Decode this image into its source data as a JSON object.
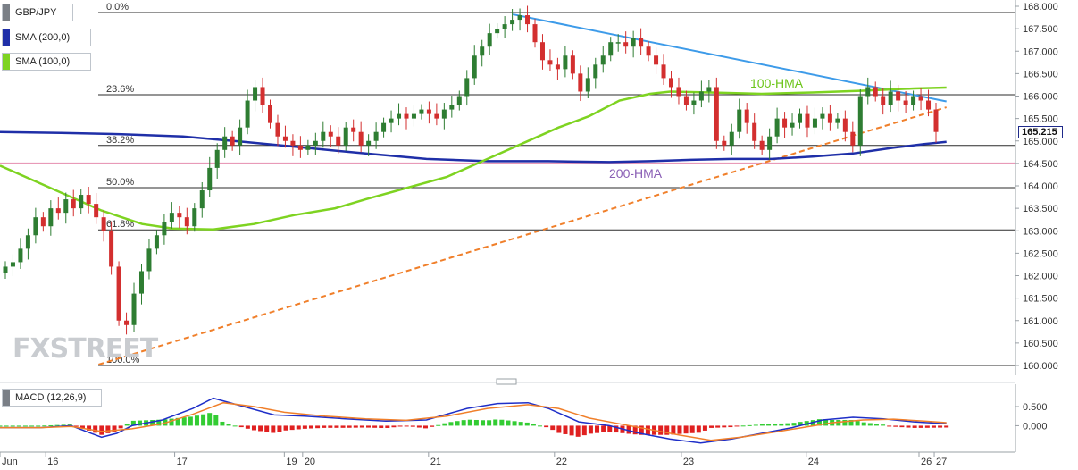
{
  "legend": {
    "symbol": "GBP/JPY",
    "sma200": "SMA (200,0)",
    "sma100": "SMA (100,0)",
    "macd": "MACD (12,26,9)"
  },
  "colors": {
    "up_candle": "#2e7d32",
    "down_candle": "#d32f2f",
    "hma100": "#7ed321",
    "hma200": "#1f2fa8",
    "resistance_line": "#3d9be9",
    "support_line": "#f07f2a",
    "horizontal_line": "#e89ab8",
    "macd_line": "#1f2fc8",
    "signal_line": "#f07f2a",
    "hist_up": "#33cc33",
    "hist_down": "#e02020"
  },
  "watermark": "FXSTREET",
  "current_price": "165.215",
  "chart_data": {
    "type": "candlestick",
    "title": "GBP/JPY",
    "x_tick_labels": [
      "Jun",
      "16",
      "17",
      "19",
      "20",
      "21",
      "22",
      "23",
      "24",
      "26",
      "27"
    ],
    "y_ticks": [
      "168.000",
      "167.500",
      "167.000",
      "166.500",
      "166.000",
      "165.500",
      "165.000",
      "164.500",
      "164.000",
      "163.500",
      "163.000",
      "162.500",
      "162.000",
      "161.500",
      "161.000",
      "160.500",
      "160.000"
    ],
    "ylim": [
      160.0,
      168.0
    ],
    "fibonacci": [
      {
        "label": "0.0%",
        "price": 167.86
      },
      {
        "label": "23.6%",
        "price": 166.03
      },
      {
        "label": "38.2%",
        "price": 164.9
      },
      {
        "label": "50.0%",
        "price": 163.96
      },
      {
        "label": "61.8%",
        "price": 163.02
      },
      {
        "label": "100.0%",
        "price": 160.0
      }
    ],
    "horizontal_support": 164.5,
    "annotations": {
      "hma100_label": "100-HMA",
      "hma200_label": "200-HMA"
    },
    "trendlines": {
      "resistance": {
        "from": [
          0.505,
          167.82
        ],
        "to": [
          0.932,
          165.88
        ]
      },
      "support": {
        "from": [
          0.097,
          160.02
        ],
        "to": [
          0.932,
          165.75
        ]
      }
    },
    "candles_close": [
      162.2,
      162.3,
      162.6,
      162.9,
      163.3,
      163.1,
      163.5,
      163.4,
      163.7,
      163.5,
      163.8,
      163.6,
      163.3,
      163.0,
      162.2,
      161.0,
      160.9,
      161.6,
      162.1,
      162.6,
      162.9,
      163.2,
      163.4,
      163.3,
      163.1,
      163.5,
      163.9,
      164.4,
      164.8,
      165.1,
      164.9,
      165.3,
      165.9,
      166.2,
      165.8,
      165.4,
      165.1,
      165.0,
      164.9,
      164.8,
      164.9,
      165.0,
      165.2,
      165.1,
      164.9,
      165.3,
      165.2,
      164.9,
      165.0,
      165.2,
      165.4,
      165.5,
      165.6,
      165.5,
      165.6,
      165.7,
      165.6,
      165.5,
      165.7,
      165.8,
      166.0,
      166.4,
      166.9,
      167.1,
      167.4,
      167.5,
      167.6,
      167.7,
      167.8,
      167.6,
      167.2,
      166.8,
      166.7,
      166.6,
      166.9,
      166.5,
      166.1,
      166.4,
      166.7,
      166.9,
      167.2,
      167.2,
      167.1,
      167.3,
      167.1,
      166.9,
      166.7,
      166.4,
      166.2,
      166.0,
      165.8,
      165.9,
      166.1,
      166.2,
      165.0,
      164.9,
      165.2,
      165.7,
      165.4,
      165.0,
      164.8,
      165.1,
      165.5,
      165.3,
      165.4,
      165.6,
      165.3,
      165.5,
      165.6,
      165.4,
      165.5,
      165.2,
      164.9,
      166.0,
      166.2,
      166.0,
      165.8,
      166.1,
      165.9,
      165.8,
      166.0,
      165.9,
      165.7,
      165.2
    ],
    "hma100": [
      [
        0.0,
        164.45
      ],
      [
        0.05,
        163.95
      ],
      [
        0.1,
        163.45
      ],
      [
        0.14,
        163.15
      ],
      [
        0.17,
        163.05
      ],
      [
        0.21,
        163.03
      ],
      [
        0.25,
        163.15
      ],
      [
        0.29,
        163.35
      ],
      [
        0.33,
        163.5
      ],
      [
        0.36,
        163.7
      ],
      [
        0.4,
        163.95
      ],
      [
        0.44,
        164.2
      ],
      [
        0.48,
        164.6
      ],
      [
        0.52,
        165.0
      ],
      [
        0.55,
        165.3
      ],
      [
        0.58,
        165.55
      ],
      [
        0.61,
        165.9
      ],
      [
        0.64,
        166.05
      ],
      [
        0.66,
        166.1
      ],
      [
        0.7,
        166.08
      ],
      [
        0.75,
        166.05
      ],
      [
        0.8,
        166.08
      ],
      [
        0.85,
        166.12
      ],
      [
        0.9,
        166.17
      ],
      [
        0.932,
        166.19
      ]
    ],
    "hma200": [
      [
        0.0,
        165.2
      ],
      [
        0.06,
        165.18
      ],
      [
        0.12,
        165.15
      ],
      [
        0.18,
        165.1
      ],
      [
        0.24,
        164.98
      ],
      [
        0.3,
        164.85
      ],
      [
        0.36,
        164.72
      ],
      [
        0.42,
        164.6
      ],
      [
        0.48,
        164.55
      ],
      [
        0.54,
        164.55
      ],
      [
        0.6,
        164.53
      ],
      [
        0.64,
        164.55
      ],
      [
        0.68,
        164.58
      ],
      [
        0.72,
        164.6
      ],
      [
        0.76,
        164.6
      ],
      [
        0.8,
        164.65
      ],
      [
        0.84,
        164.72
      ],
      [
        0.88,
        164.85
      ],
      [
        0.91,
        164.93
      ],
      [
        0.932,
        164.98
      ]
    ],
    "macd": {
      "yticks": [
        "0.500",
        "0.000"
      ],
      "ylim": [
        -0.55,
        0.85
      ],
      "macd_line": [
        [
          0.0,
          -0.05
        ],
        [
          0.04,
          -0.05
        ],
        [
          0.07,
          0.0
        ],
        [
          0.085,
          -0.15
        ],
        [
          0.1,
          -0.3
        ],
        [
          0.115,
          -0.2
        ],
        [
          0.13,
          0.0
        ],
        [
          0.16,
          0.15
        ],
        [
          0.19,
          0.45
        ],
        [
          0.21,
          0.72
        ],
        [
          0.24,
          0.5
        ],
        [
          0.27,
          0.28
        ],
        [
          0.3,
          0.25
        ],
        [
          0.34,
          0.18
        ],
        [
          0.38,
          0.12
        ],
        [
          0.42,
          0.15
        ],
        [
          0.46,
          0.45
        ],
        [
          0.49,
          0.58
        ],
        [
          0.52,
          0.6
        ],
        [
          0.54,
          0.45
        ],
        [
          0.57,
          0.1
        ],
        [
          0.6,
          0.0
        ],
        [
          0.63,
          -0.2
        ],
        [
          0.66,
          -0.35
        ],
        [
          0.69,
          -0.45
        ],
        [
          0.72,
          -0.35
        ],
        [
          0.75,
          -0.2
        ],
        [
          0.78,
          -0.05
        ],
        [
          0.81,
          0.15
        ],
        [
          0.84,
          0.22
        ],
        [
          0.87,
          0.18
        ],
        [
          0.9,
          0.1
        ],
        [
          0.932,
          0.05
        ]
      ],
      "signal_line": [
        [
          0.0,
          -0.05
        ],
        [
          0.04,
          -0.05
        ],
        [
          0.07,
          -0.02
        ],
        [
          0.1,
          -0.15
        ],
        [
          0.13,
          -0.08
        ],
        [
          0.16,
          0.05
        ],
        [
          0.19,
          0.3
        ],
        [
          0.22,
          0.6
        ],
        [
          0.25,
          0.5
        ],
        [
          0.28,
          0.35
        ],
        [
          0.32,
          0.25
        ],
        [
          0.36,
          0.18
        ],
        [
          0.4,
          0.14
        ],
        [
          0.44,
          0.25
        ],
        [
          0.48,
          0.45
        ],
        [
          0.52,
          0.55
        ],
        [
          0.55,
          0.45
        ],
        [
          0.58,
          0.2
        ],
        [
          0.61,
          0.05
        ],
        [
          0.64,
          -0.1
        ],
        [
          0.67,
          -0.25
        ],
        [
          0.7,
          -0.38
        ],
        [
          0.73,
          -0.3
        ],
        [
          0.76,
          -0.18
        ],
        [
          0.79,
          -0.05
        ],
        [
          0.82,
          0.08
        ],
        [
          0.85,
          0.15
        ],
        [
          0.88,
          0.17
        ],
        [
          0.91,
          0.12
        ],
        [
          0.932,
          0.08
        ]
      ]
    }
  }
}
